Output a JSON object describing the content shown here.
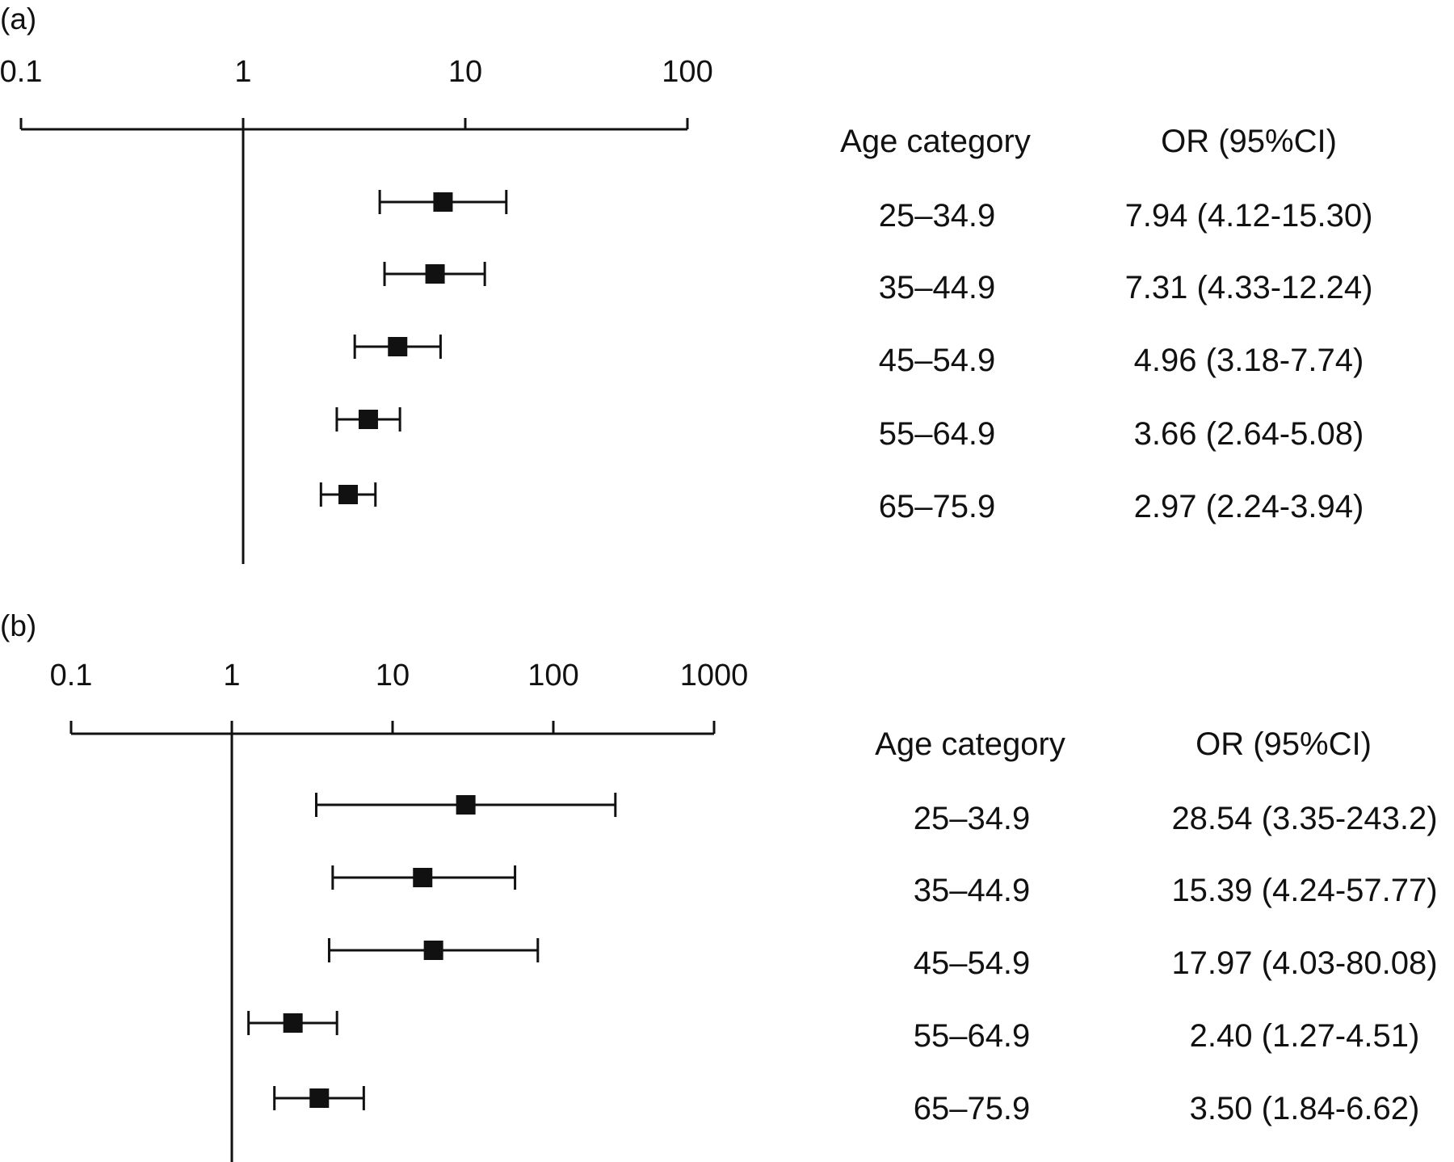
{
  "panels": [
    {
      "label": "(a)",
      "col_header_age": "Age category",
      "col_header_or": "OR (95%CI)",
      "rows": [
        {
          "age": "25–34.9",
          "or_text": "7.94 (4.12-15.30)"
        },
        {
          "age": "35–44.9",
          "or_text": "7.31 (4.33-12.24)"
        },
        {
          "age": "45–54.9",
          "or_text": "4.96 (3.18-7.74)"
        },
        {
          "age": "55–64.9",
          "or_text": "3.66 (2.64-5.08)"
        },
        {
          "age": "65–75.9",
          "or_text": "2.97 (2.24-3.94)"
        }
      ]
    },
    {
      "label": "(b)",
      "col_header_age": "Age category",
      "col_header_or": "OR (95%CI)",
      "rows": [
        {
          "age": "25–34.9",
          "or_text": "28.54 (3.35-243.2)"
        },
        {
          "age": "35–44.9",
          "or_text": "15.39 (4.24-57.77)"
        },
        {
          "age": "45–54.9",
          "or_text": "17.97 (4.03-80.08)"
        },
        {
          "age": "55–64.9",
          "or_text": "2.40 (1.27-4.51)"
        },
        {
          "age": "65–75.9",
          "or_text": "3.50 (1.84-6.62)"
        }
      ]
    }
  ],
  "chart_data": [
    {
      "type": "forest",
      "scale": "log",
      "reference_line": 1,
      "xlim": [
        0.1,
        100
      ],
      "ticks": [
        0.1,
        1,
        10,
        100
      ],
      "tick_labels": [
        "0.1",
        "1",
        "10",
        "100"
      ],
      "categories": [
        "25–34.9",
        "35–44.9",
        "45–54.9",
        "55–64.9",
        "65–75.9"
      ],
      "estimates": [
        7.94,
        7.31,
        4.96,
        3.66,
        2.97
      ],
      "lower": [
        4.12,
        4.33,
        3.18,
        2.64,
        2.24
      ],
      "upper": [
        15.3,
        12.24,
        7.74,
        5.08,
        3.94
      ]
    },
    {
      "type": "forest",
      "scale": "log",
      "reference_line": 1,
      "xlim": [
        0.1,
        1000
      ],
      "ticks": [
        0.1,
        1,
        10,
        100,
        1000
      ],
      "tick_labels": [
        "0.1",
        "1",
        "10",
        "100",
        "1000"
      ],
      "categories": [
        "25–34.9",
        "35–44.9",
        "45–54.9",
        "55–64.9",
        "65–75.9"
      ],
      "estimates": [
        28.54,
        15.39,
        17.97,
        2.4,
        3.5
      ],
      "lower": [
        3.35,
        4.24,
        4.03,
        1.27,
        1.84
      ],
      "upper": [
        243.2,
        57.77,
        80.08,
        4.51,
        6.62
      ]
    }
  ]
}
